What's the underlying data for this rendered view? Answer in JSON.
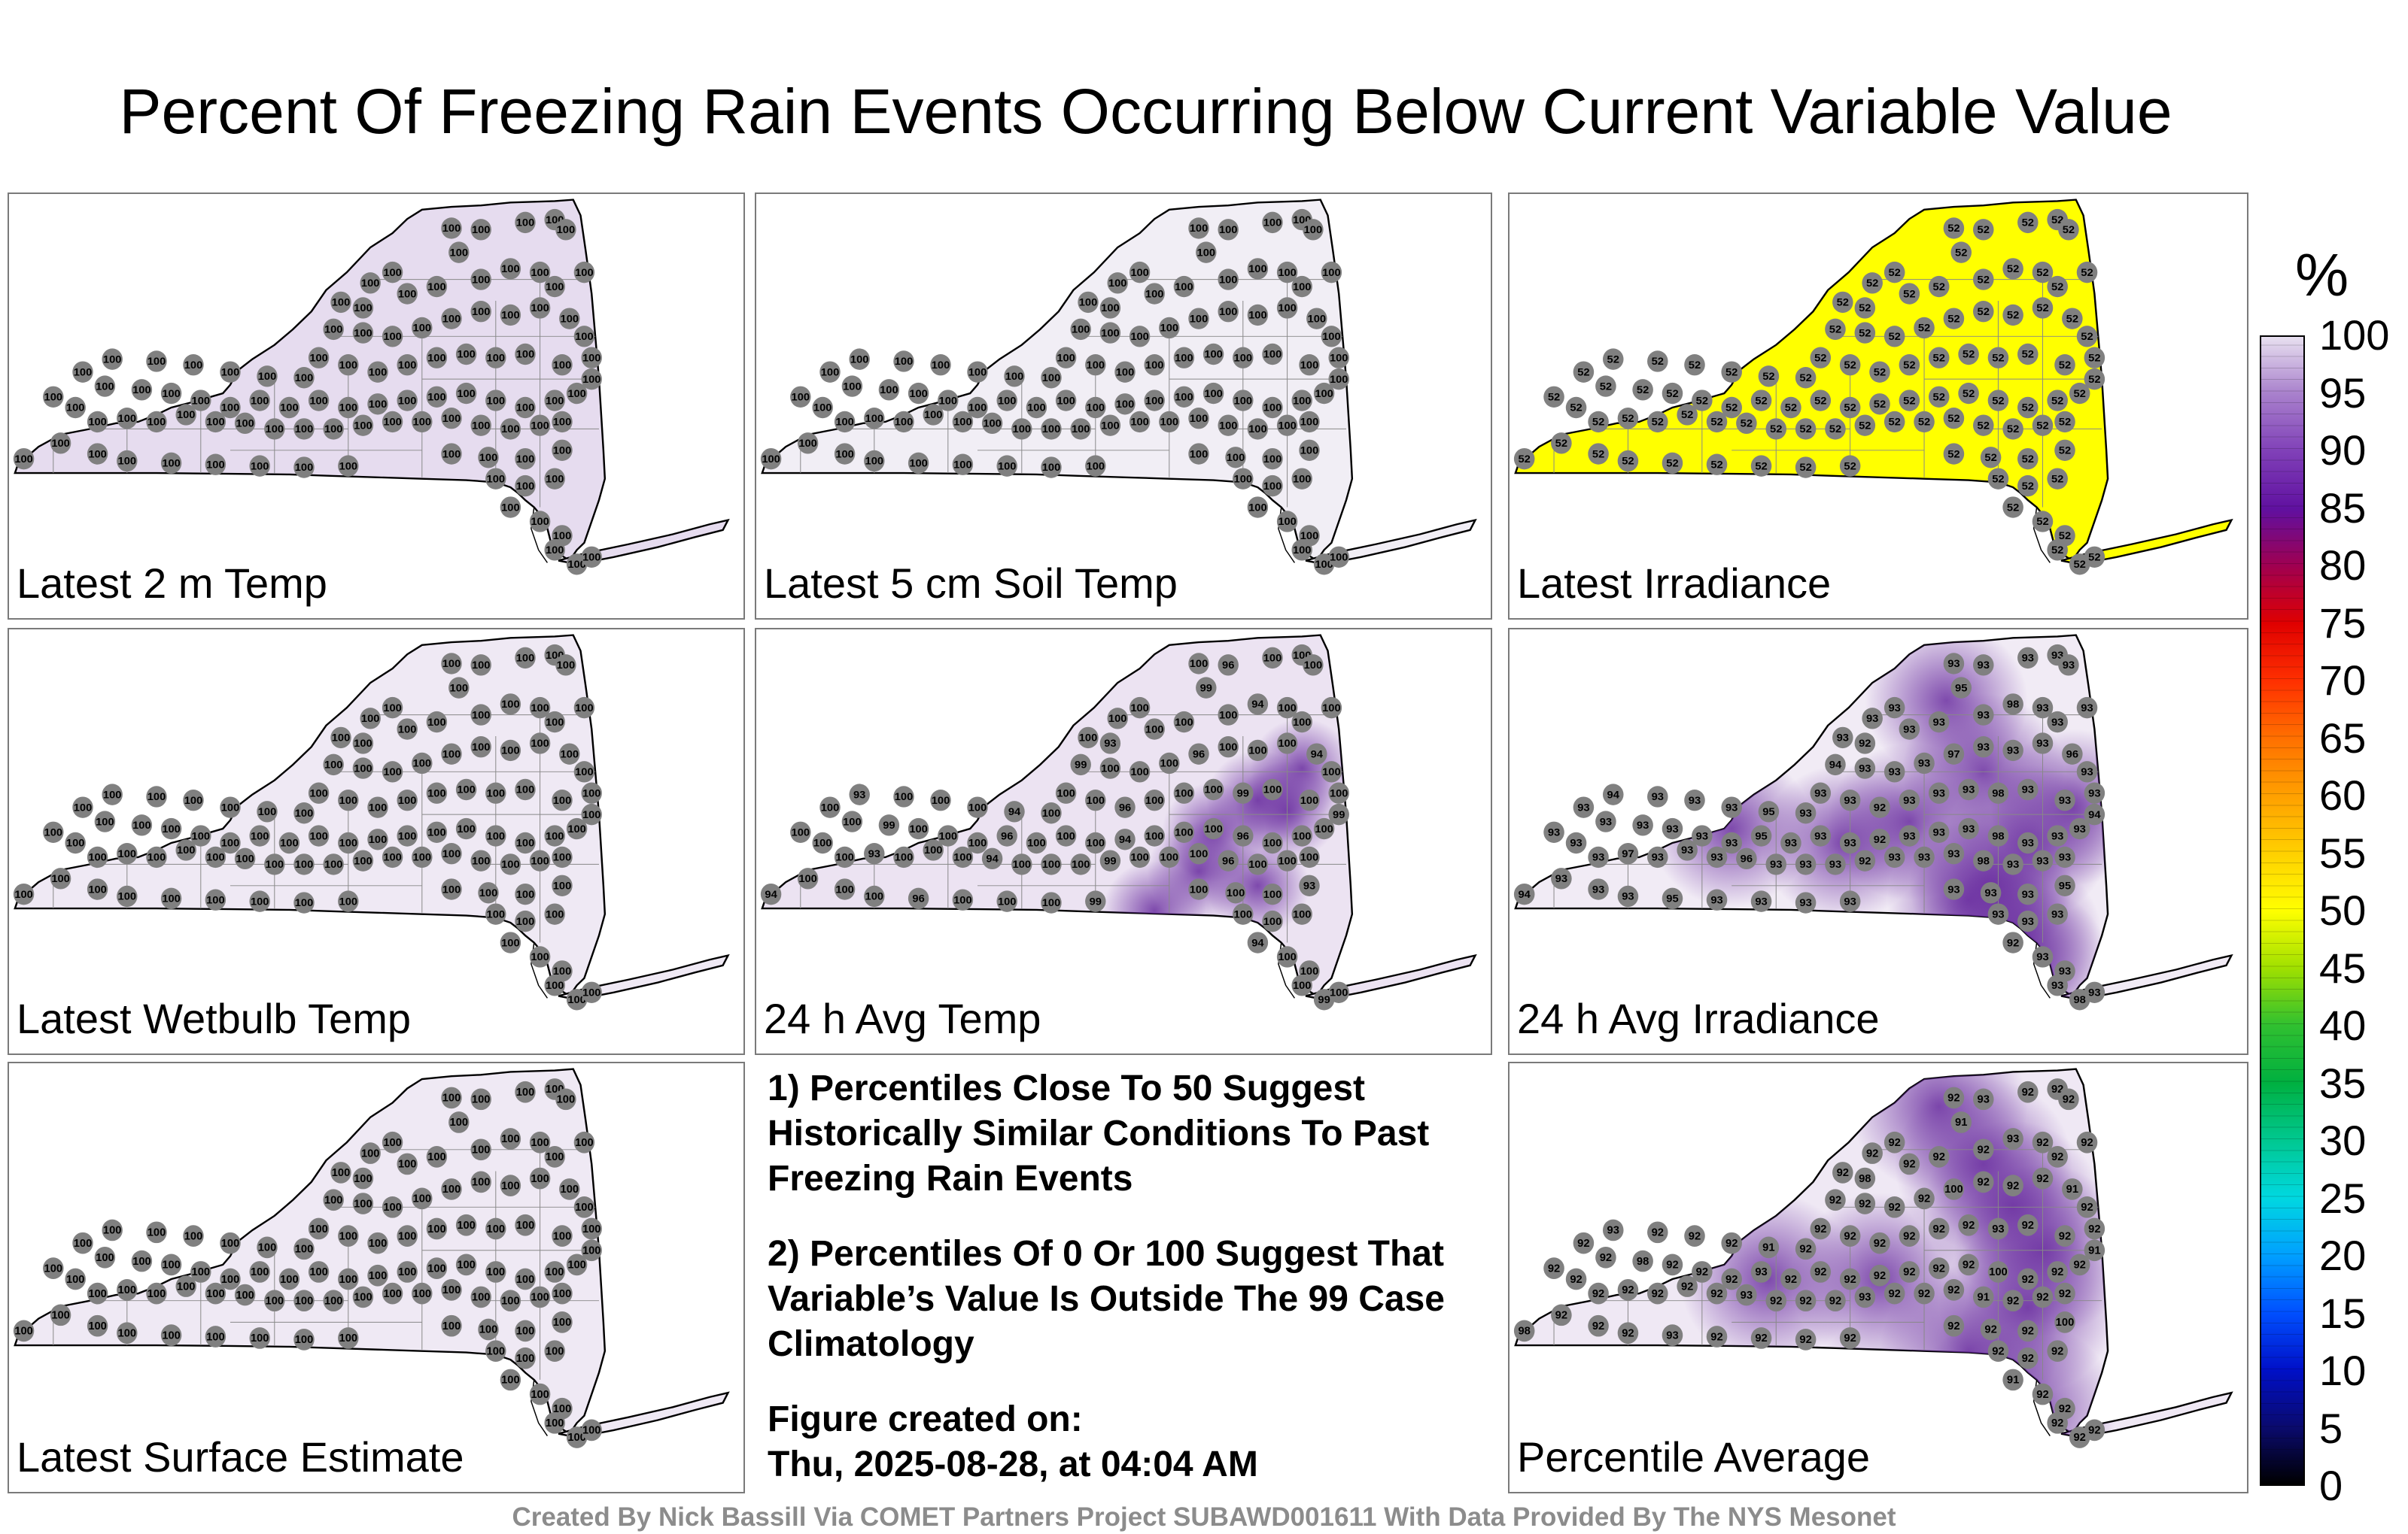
{
  "title": "Percent Of Freezing Rain Events Occurring Below Current Variable Value",
  "panels": [
    {
      "label": "Latest 2 m Temp",
      "fill": "#e6dcef",
      "value": "100",
      "hot": []
    },
    {
      "label": "Latest 5 cm Soil Temp",
      "fill": "#f1eef5",
      "value": "100",
      "hot": []
    },
    {
      "label": "Latest Irradiance",
      "fill": "#ffff00",
      "value": "52",
      "hot": []
    },
    {
      "label": "Latest Wetbulb Temp",
      "fill": "#efe9f4",
      "value": "100",
      "hot": []
    },
    {
      "label": "24 h Avg Temp",
      "fill": "#ece3f2",
      "value": "100",
      "hot": [
        "96",
        "99",
        "93",
        "94",
        "99",
        "96",
        "94"
      ]
    },
    {
      "label": "24 h Avg Irradiance",
      "fill": "#f1ebf5",
      "value": "93",
      "hot": [
        "93",
        "95",
        "92",
        "98",
        "94",
        "97",
        "96",
        "92",
        "98",
        "94",
        "95"
      ]
    },
    {
      "label": "Latest Surface Estimate",
      "fill": "#efe9f4",
      "value": "100",
      "hot": []
    },
    {
      "label": "Percentile Average",
      "fill": "#efe8f4",
      "value": "92",
      "hot": [
        "93",
        "91",
        "98",
        "93",
        "92",
        "100",
        "91",
        "92",
        "93"
      ]
    }
  ],
  "notes": {
    "n1": "1) Percentiles Close To 50 Suggest Historically Similar Conditions To Past Freezing Rain Events",
    "n2": "2) Percentiles Of 0 Or 100 Suggest That Variable’s Value Is Outside The 99 Case Climatology",
    "created_label": "Figure created on:",
    "created_value": "Thu, 2025-08-28, at 04:04 AM"
  },
  "colorbar": {
    "unit": "%",
    "ticks": [
      "100",
      "95",
      "90",
      "85",
      "80",
      "75",
      "70",
      "65",
      "60",
      "55",
      "50",
      "45",
      "40",
      "35",
      "30",
      "25",
      "20",
      "15",
      "10",
      "5",
      "0"
    ],
    "colors": [
      "#000000",
      "#0a0a6e",
      "#0010c8",
      "#0050ff",
      "#00a0ff",
      "#00d8e0",
      "#00c890",
      "#00b040",
      "#30c030",
      "#a0e000",
      "#ffff00",
      "#ffd000",
      "#ffa000",
      "#ff7000",
      "#ff3000",
      "#e00000",
      "#a00050",
      "#6010a0",
      "#8040b8",
      "#a880cc",
      "#e8e0f0"
    ]
  },
  "credit": "Created By Nick Bassill Via COMET Partners Project SUBAWD001611 With Data Provided By The NYS Mesonet"
}
